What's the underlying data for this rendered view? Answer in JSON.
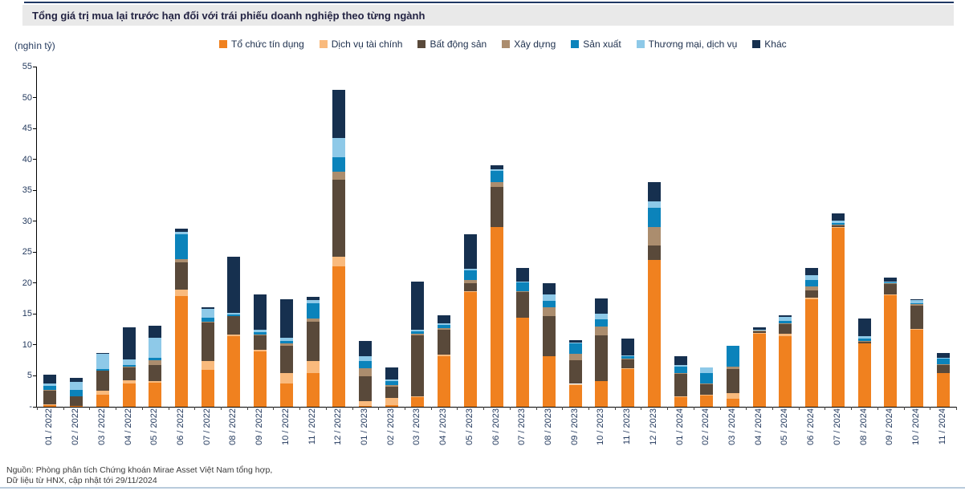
{
  "header": {
    "title": "Tổng giá trị mua lại trước hạn đối với trái phiếu doanh nghiệp theo từng ngành"
  },
  "axis_unit": "(nghìn tỷ)",
  "source": {
    "line1": "Nguồn: Phòng phân tích Chứng khoán Mirae Asset Việt Nam tổng hợp,",
    "line2": "Dữ liệu từ HNX, cập nhật tới 29/11/2024"
  },
  "colors": {
    "accent_rule_top": "#1f3864",
    "accent_rule_bottom": "#b9cbdc",
    "title_band_bg": "#e9e9e9",
    "axis_text": "#243a5e"
  },
  "chart_data": {
    "type": "bar",
    "stacked": true,
    "title": "Tổng giá trị mua lại trước hạn đối với trái phiếu doanh nghiệp theo từng ngành",
    "ylabel": "(nghìn tỷ)",
    "xlabel": "",
    "ylim": [
      0,
      55
    ],
    "ytick_step": 5,
    "zero_tick_label": "-",
    "grid": false,
    "legend_position": "top",
    "categories": [
      "01 / 2022",
      "02 / 2022",
      "03 / 2022",
      "04 / 2022",
      "05 / 2022",
      "06 / 2022",
      "07 / 2022",
      "08 / 2022",
      "09 / 2022",
      "10 / 2022",
      "11 / 2022",
      "12 / 2022",
      "01 / 2023",
      "02 / 2023",
      "03 / 2023",
      "04 / 2023",
      "05 / 2023",
      "06 / 2023",
      "07 / 2023",
      "08 / 2023",
      "09 / 2023",
      "10 / 2023",
      "11 / 2023",
      "12 / 2023",
      "01 / 2024",
      "02 / 2024",
      "03 / 2024",
      "04 / 2024",
      "05 / 2024",
      "06 / 2024",
      "07 / 2024",
      "08 / 2024",
      "09 / 2024",
      "10 / 2024",
      "11 / 2024"
    ],
    "series": [
      {
        "name": "Tổ chức tín dụng",
        "color": "#f0811f",
        "values": [
          0.2,
          0.1,
          1.9,
          3.8,
          3.9,
          17.9,
          6.0,
          11.4,
          9.0,
          3.8,
          5.5,
          22.7,
          0.1,
          0.2,
          1.6,
          8.2,
          18.6,
          29.0,
          14.4,
          8.2,
          3.5,
          4.2,
          6.1,
          23.8,
          1.6,
          1.9,
          1.3,
          11.8,
          11.4,
          17.4,
          28.9,
          10.3,
          18.0,
          12.5,
          5.5
        ]
      },
      {
        "name": "Dịch vụ tài chính",
        "color": "#f9ba7d",
        "values": [
          0.2,
          0.0,
          0.7,
          0.5,
          0.3,
          1.1,
          1.4,
          0.3,
          0.2,
          1.7,
          1.9,
          1.5,
          0.8,
          1.2,
          0.1,
          0.2,
          0.1,
          0.0,
          0.0,
          0.0,
          0.2,
          0.0,
          0.1,
          0.0,
          0.1,
          0.1,
          0.9,
          0.1,
          0.4,
          0.2,
          0.1,
          0.0,
          0.1,
          0.1,
          0.0
        ]
      },
      {
        "name": "Bất động sản",
        "color": "#59493a",
        "values": [
          2.2,
          1.6,
          3.3,
          2.1,
          2.5,
          4.4,
          6.3,
          2.9,
          2.3,
          4.4,
          6.3,
          12.5,
          4.0,
          1.9,
          9.9,
          4.0,
          1.3,
          6.6,
          4.1,
          6.5,
          3.8,
          7.4,
          1.4,
          2.3,
          3.6,
          1.6,
          3.9,
          0.3,
          1.6,
          1.2,
          0.4,
          0.2,
          1.7,
          3.8,
          1.3
        ]
      },
      {
        "name": "Xây dựng",
        "color": "#ab8d6e",
        "values": [
          0.1,
          0.0,
          0.0,
          0.1,
          0.8,
          0.5,
          0.1,
          0.0,
          0.2,
          0.3,
          0.6,
          1.3,
          1.3,
          0.2,
          0.2,
          0.3,
          0.5,
          0.7,
          0.2,
          1.4,
          1.1,
          1.4,
          0.2,
          2.9,
          0.2,
          0.1,
          0.4,
          0.1,
          0.1,
          0.7,
          0.1,
          0.2,
          0.2,
          0.2,
          0.1
        ]
      },
      {
        "name": "Sản xuất",
        "color": "#0b83bb",
        "values": [
          0.7,
          1.0,
          0.2,
          0.3,
          0.4,
          4.0,
          0.6,
          0.3,
          0.4,
          0.4,
          2.4,
          2.4,
          1.2,
          0.7,
          0.4,
          0.5,
          1.6,
          1.9,
          1.4,
          1.0,
          1.6,
          1.1,
          0.4,
          3.2,
          1.0,
          1.8,
          3.3,
          0.1,
          0.4,
          1.0,
          0.2,
          0.3,
          0.2,
          0.2,
          0.9
        ]
      },
      {
        "name": "Thương mại, dịch vụ",
        "color": "#8ec9e8",
        "values": [
          0.3,
          1.3,
          2.4,
          0.9,
          3.3,
          0.4,
          1.4,
          0.3,
          0.3,
          0.5,
          0.6,
          3.0,
          0.8,
          0.2,
          0.2,
          0.3,
          0.2,
          0.2,
          0.2,
          1.0,
          0.2,
          0.9,
          0.1,
          1.0,
          0.2,
          0.9,
          0.0,
          0.1,
          0.6,
          0.8,
          0.4,
          0.4,
          0.1,
          0.4,
          0.1
        ]
      },
      {
        "name": "Khác",
        "color": "#16304f",
        "values": [
          1.5,
          0.7,
          0.2,
          5.1,
          1.9,
          0.5,
          0.3,
          9.0,
          5.7,
          6.3,
          0.5,
          7.9,
          2.4,
          1.9,
          7.9,
          1.3,
          5.6,
          0.7,
          2.2,
          1.9,
          0.4,
          2.5,
          2.7,
          3.1,
          1.5,
          0.0,
          0.0,
          0.4,
          0.3,
          1.2,
          1.2,
          2.9,
          0.6,
          0.2,
          0.8
        ]
      }
    ]
  }
}
